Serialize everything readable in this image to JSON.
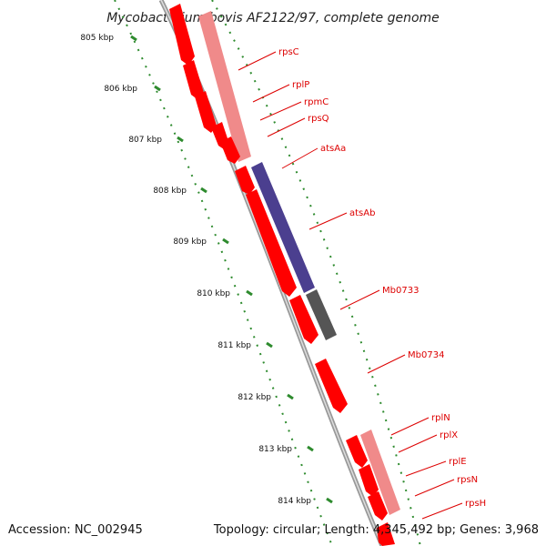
{
  "title": "Mycobacterium bovis AF2122/97, complete genome",
  "footer": {
    "accession": "Accession: NC_002945",
    "info": "Topology: circular; Length: 4,345,492 bp; Genes: 3,968"
  },
  "colors": {
    "strand_forward": "#ff0000",
    "strand_forward_light": "#f08a8a",
    "feature_blue": "#4b3f8f",
    "feature_gray": "#555555",
    "tick_green": "#2e8b2e",
    "backbone": "#888888",
    "label_red": "#dd0000"
  },
  "scale_labels": [
    "805 kbp",
    "806 kbp",
    "807 kbp",
    "808 kbp",
    "809 kbp",
    "810 kbp",
    "811 kbp",
    "812 kbp",
    "813 kbp",
    "814 kbp"
  ],
  "gene_labels": [
    "rpsC",
    "rplP",
    "rpmC",
    "rpsQ",
    "atsAa",
    "atsAb",
    "Mb0733",
    "Mb0734",
    "rplN",
    "rplX",
    "rplE",
    "rpsN",
    "rpsH"
  ]
}
